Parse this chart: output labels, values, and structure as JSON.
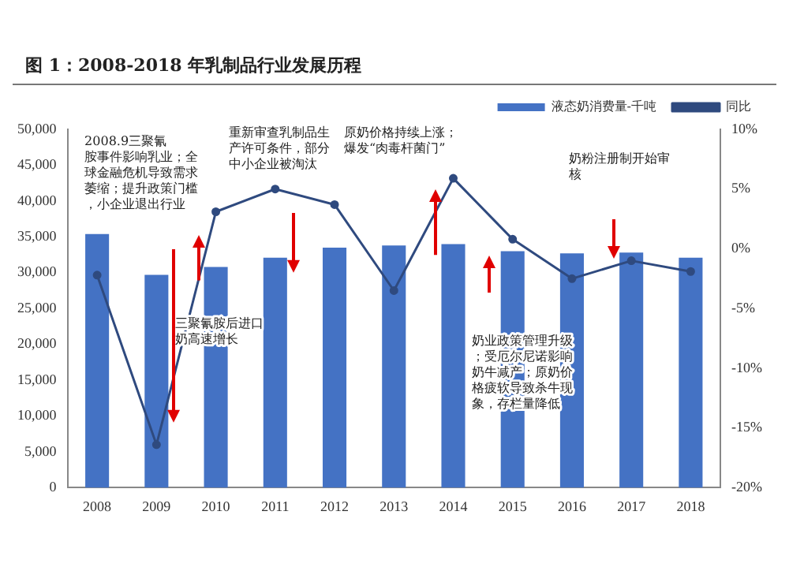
{
  "chart_data": {
    "type": "bar",
    "title": "图 1：2008-2018 年乳制品行业发展历程",
    "categories": [
      "2008",
      "2009",
      "2010",
      "2011",
      "2012",
      "2013",
      "2014",
      "2015",
      "2016",
      "2017",
      "2018"
    ],
    "series": [
      {
        "name": "液态奶消费量-千吨",
        "type": "bar",
        "color": "#4472c4",
        "values": [
          35400,
          29700,
          30800,
          32100,
          33500,
          33800,
          34000,
          33000,
          32700,
          32800,
          32100
        ]
      },
      {
        "name": "同比",
        "type": "line",
        "axis": "y2",
        "color": "#2f4a7f",
        "values": [
          -2.2,
          -16.4,
          3.1,
          5.0,
          3.7,
          -3.5,
          5.9,
          0.8,
          -2.5,
          -1.0,
          -1.9
        ]
      }
    ],
    "ylim": [
      0,
      50000
    ],
    "yticks": [
      {
        "value": 0,
        "label": "0"
      },
      {
        "value": 5000,
        "label": "5,000"
      },
      {
        "value": 10000,
        "label": "10,000"
      },
      {
        "value": 15000,
        "label": "15,000"
      },
      {
        "value": 20000,
        "label": "20,000"
      },
      {
        "value": 25000,
        "label": "25,000"
      },
      {
        "value": 30000,
        "label": "30,000"
      },
      {
        "value": 35000,
        "label": "35,000"
      },
      {
        "value": 40000,
        "label": "40,000"
      },
      {
        "value": 45000,
        "label": "45,000"
      },
      {
        "value": 50000,
        "label": "50,000"
      }
    ],
    "y2lim": [
      -20,
      10
    ],
    "y2ticks": [
      {
        "value": -20,
        "label": "-20%"
      },
      {
        "value": -15,
        "label": "-15%"
      },
      {
        "value": -10,
        "label": "-10%"
      },
      {
        "value": -5,
        "label": "-5%"
      },
      {
        "value": 0,
        "label": "0%"
      },
      {
        "value": 5,
        "label": "5%"
      },
      {
        "value": 10,
        "label": "10%"
      }
    ],
    "annotations": [
      "2008.9三聚氰胺事件影响乳业；全球金融危机导致需求萎缩；提升政策门槛，小企业退出行业",
      "重新审查乳制品生产许可条件，部分中小企业被淘汰",
      "原奶价格持续上涨；爆发“肉毒杆菌门”",
      "奶粉注册制开始审核",
      "三聚氰胺后进口奶高速增长",
      "奶业政策管理升级；受厄尔尼诺影响奶牛减产；原奶价格疲软导致杀牛现象，存栏量降低"
    ],
    "grid": false,
    "legend": "top",
    "marker": "circle",
    "line_style": "solid"
  }
}
